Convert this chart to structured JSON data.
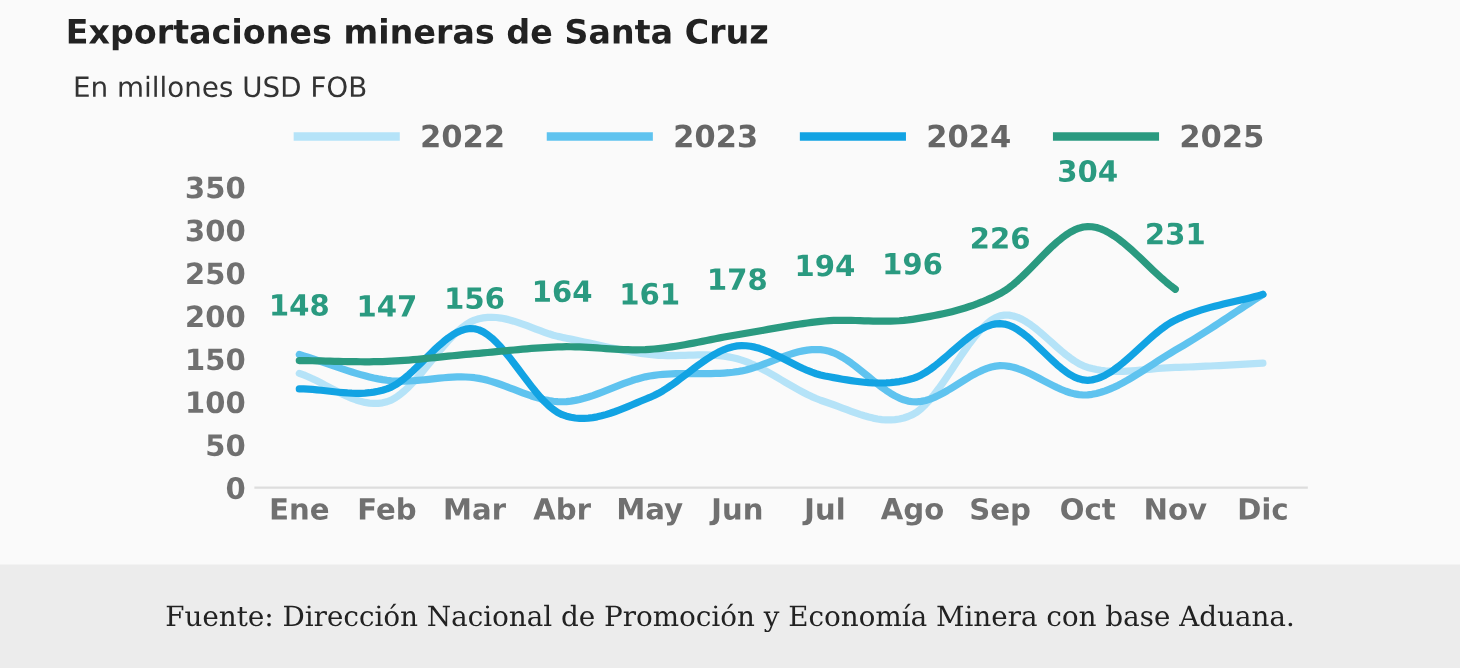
{
  "chart_data": {
    "type": "line",
    "title": "Exportaciones mineras de Santa Cruz",
    "subtitle": "En millones USD FOB",
    "categories": [
      "Ene",
      "Feb",
      "Mar",
      "Abr",
      "May",
      "Jun",
      "Jul",
      "Ago",
      "Sep",
      "Oct",
      "Nov",
      "Dic"
    ],
    "series": [
      {
        "name": "2022",
        "color": "#b5e3f8",
        "values": [
          133,
          100,
          195,
          175,
          155,
          150,
          100,
          85,
          200,
          140,
          140,
          145
        ]
      },
      {
        "name": "2023",
        "color": "#5fc3ef",
        "values": [
          155,
          125,
          128,
          100,
          130,
          135,
          160,
          100,
          142,
          108,
          160,
          225
        ]
      },
      {
        "name": "2024",
        "color": "#12a3e3",
        "values": [
          115,
          115,
          185,
          85,
          105,
          165,
          130,
          127,
          191,
          125,
          195,
          225
        ]
      },
      {
        "name": "2025",
        "color": "#2a9a80",
        "values": [
          148,
          147,
          156,
          164,
          161,
          178,
          194,
          196,
          226,
          304,
          231,
          null
        ],
        "value_labels": [
          "148",
          "147",
          "156",
          "164",
          "161",
          "178",
          "194",
          "196",
          "226",
          "304",
          "231",
          null
        ]
      }
    ],
    "ylim": [
      0,
      350
    ],
    "yticks": [
      0,
      50,
      100,
      150,
      200,
      250,
      300,
      350
    ],
    "grid": false,
    "legend": "top",
    "annotations": [
      "Fuente: Dirección Nacional de Promoción y Economía Minera con base Aduana."
    ]
  }
}
